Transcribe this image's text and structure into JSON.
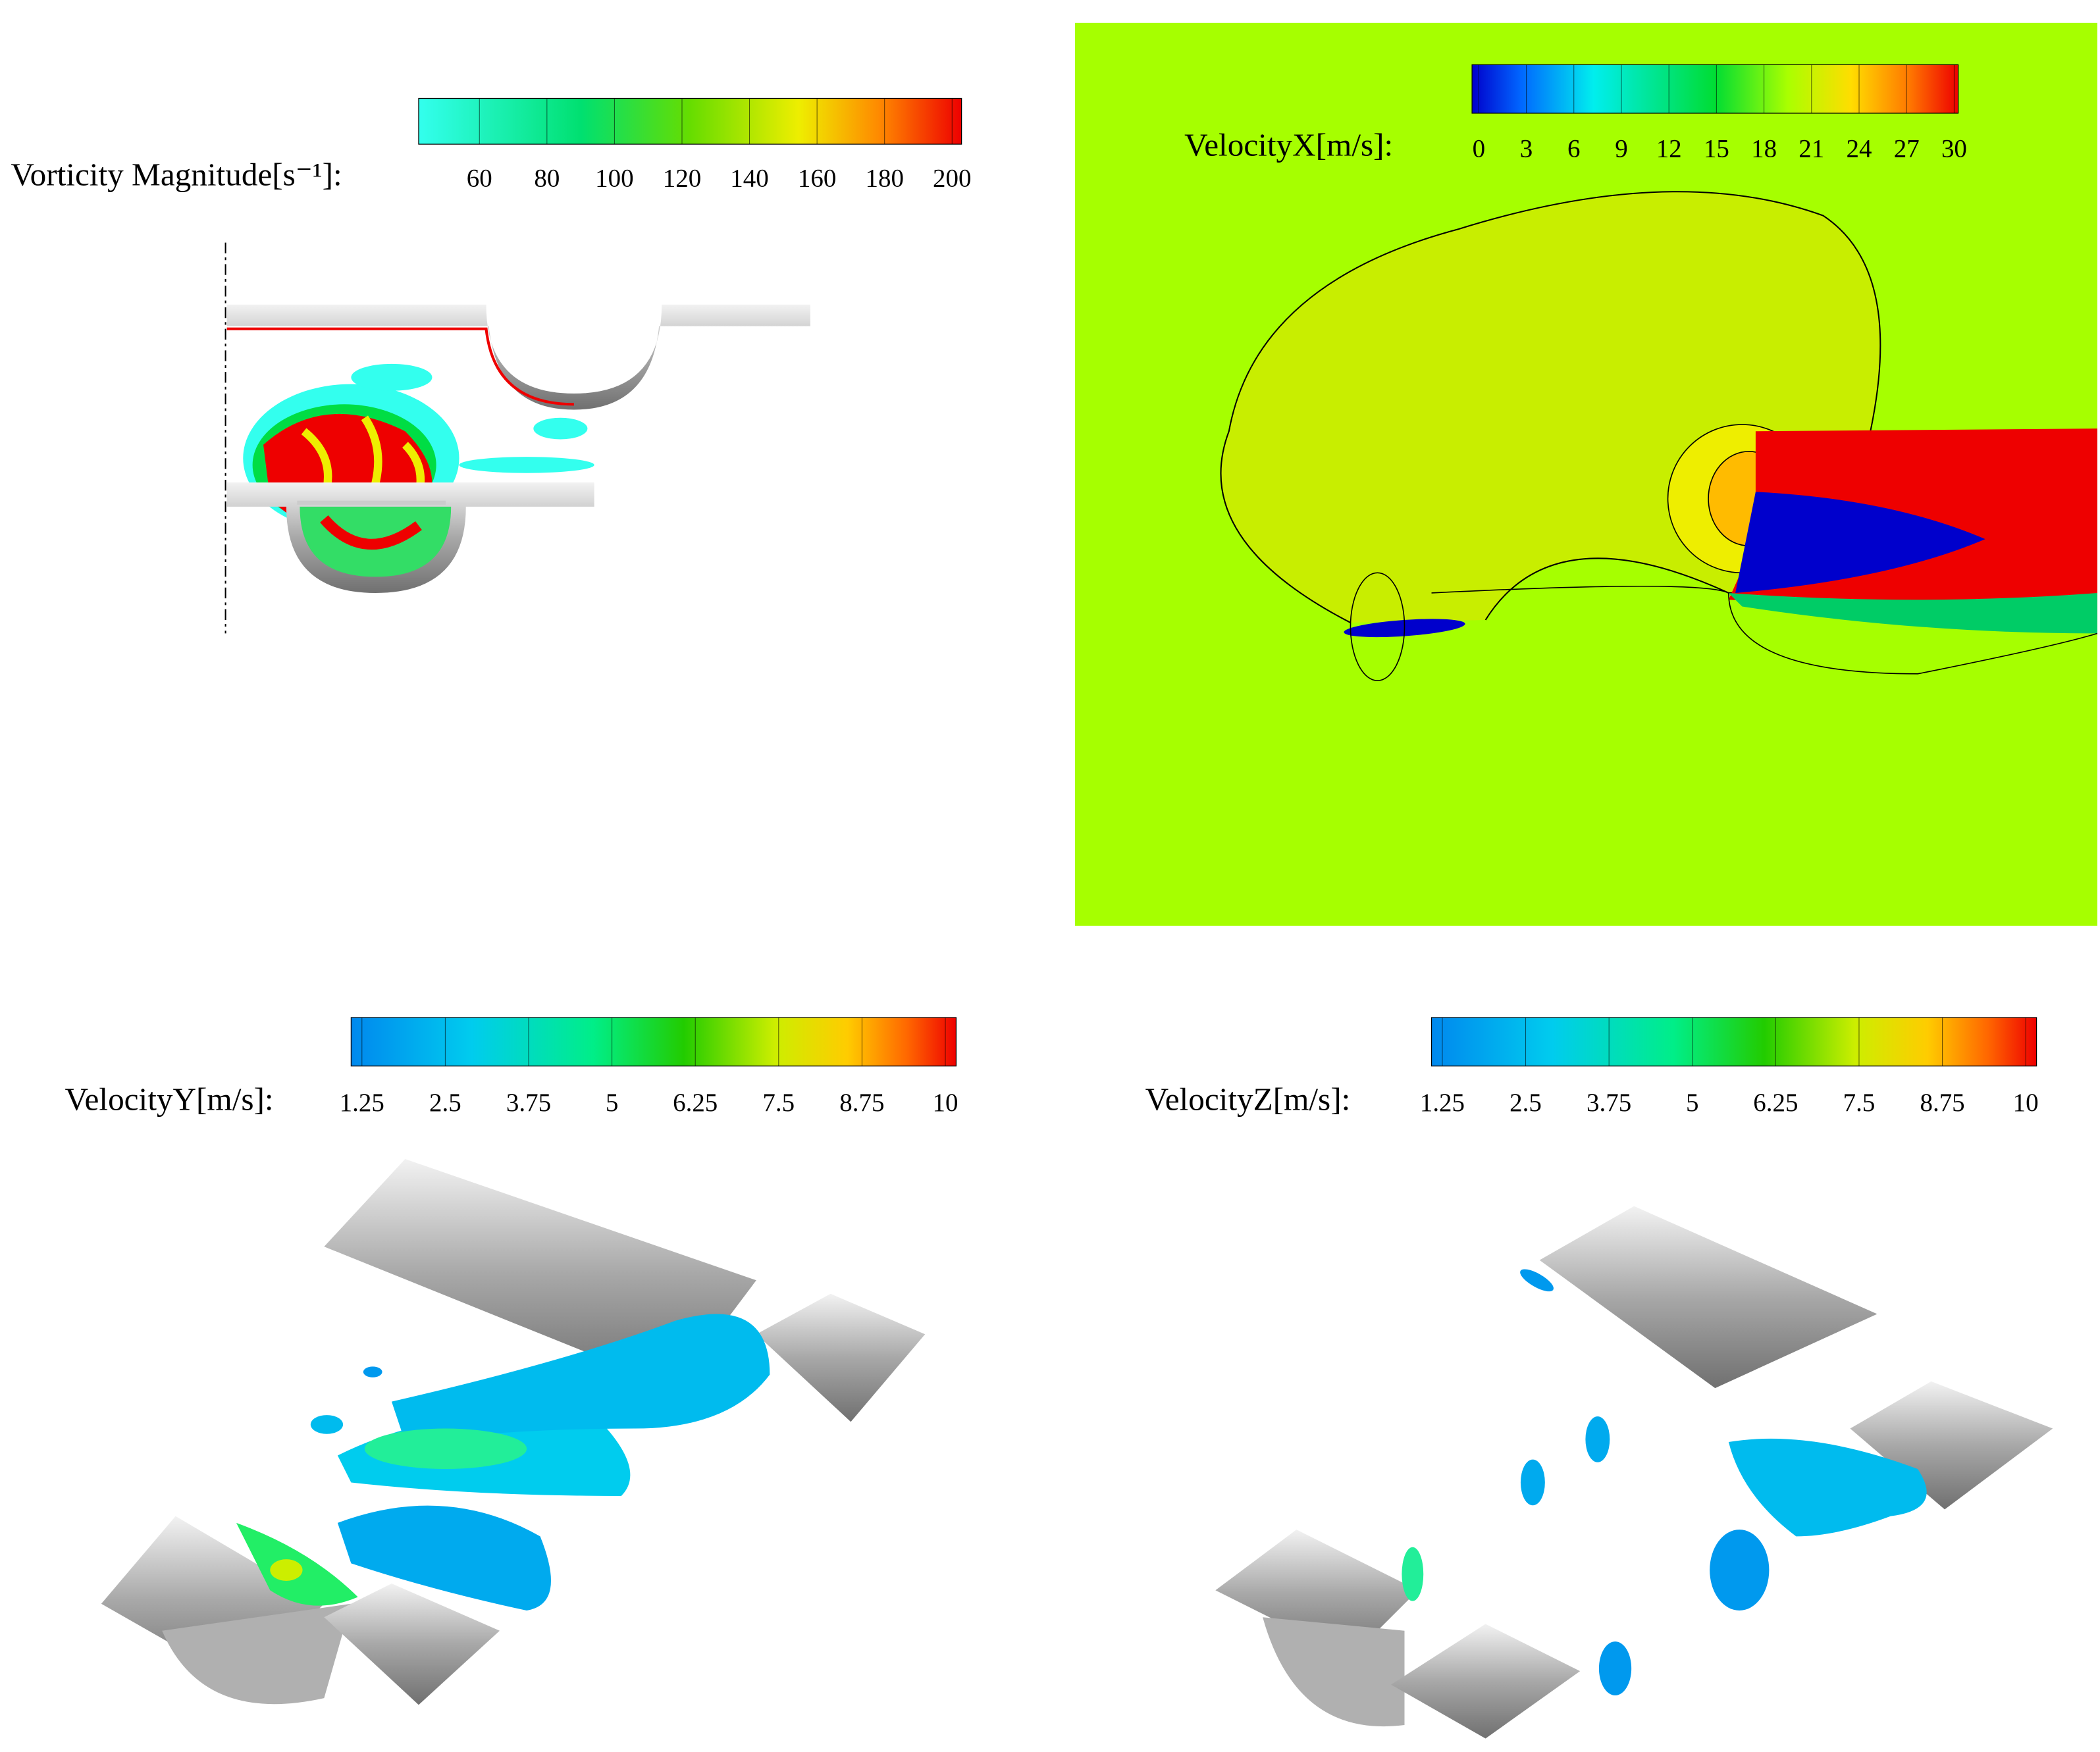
{
  "panels": [
    {
      "label": "Vorticity Magnitude[s⁻¹]:",
      "ticks": [
        60,
        80,
        100,
        120,
        140,
        160,
        180,
        200
      ]
    },
    {
      "label": "VelocityX[m/s]:",
      "ticks": [
        0,
        3,
        6,
        9,
        12,
        15,
        18,
        21,
        24,
        27,
        30
      ]
    },
    {
      "label": "VelocityY[m/s]:",
      "ticks": [
        1.25,
        2.5,
        3.75,
        5,
        6.25,
        7.5,
        8.75,
        10
      ]
    },
    {
      "label": "VelocityZ[m/s]:",
      "ticks": [
        1.25,
        2.5,
        3.75,
        5,
        6.25,
        7.5,
        8.75,
        10
      ]
    }
  ]
}
